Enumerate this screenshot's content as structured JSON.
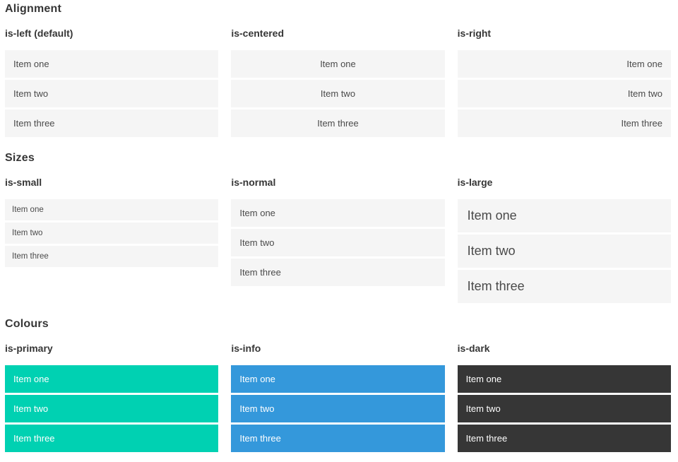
{
  "colors": {
    "page_background": "#ffffff",
    "heading_text": "#363636",
    "item_background_light": "#f5f5f5",
    "item_text_light": "#4a4a4a",
    "item_text_on_colour": "#ffffff",
    "primary": "#00d1b2",
    "info": "#3498db",
    "dark": "#363636"
  },
  "sections": [
    {
      "title": "Alignment",
      "groups": [
        {
          "label": "is-left (default)",
          "modifier": "left",
          "items": [
            "Item one",
            "Item two",
            "Item three"
          ]
        },
        {
          "label": "is-centered",
          "modifier": "center",
          "items": [
            "Item one",
            "Item two",
            "Item three"
          ]
        },
        {
          "label": "is-right",
          "modifier": "right",
          "items": [
            "Item one",
            "Item two",
            "Item three"
          ]
        }
      ]
    },
    {
      "title": "Sizes",
      "groups": [
        {
          "label": "is-small",
          "modifier": "small",
          "items": [
            "Item one",
            "Item two",
            "Item three"
          ]
        },
        {
          "label": "is-normal",
          "modifier": "normal",
          "items": [
            "Item one",
            "Item two",
            "Item three"
          ]
        },
        {
          "label": "is-large",
          "modifier": "large",
          "items": [
            "Item one",
            "Item two",
            "Item three"
          ]
        }
      ]
    },
    {
      "title": "Colours",
      "groups": [
        {
          "label": "is-primary",
          "modifier": "primary",
          "items": [
            "Item one",
            "Item two",
            "Item three"
          ]
        },
        {
          "label": "is-info",
          "modifier": "info",
          "items": [
            "Item one",
            "Item two",
            "Item three"
          ]
        },
        {
          "label": "is-dark",
          "modifier": "dark",
          "items": [
            "Item one",
            "Item two",
            "Item three"
          ]
        }
      ]
    }
  ]
}
